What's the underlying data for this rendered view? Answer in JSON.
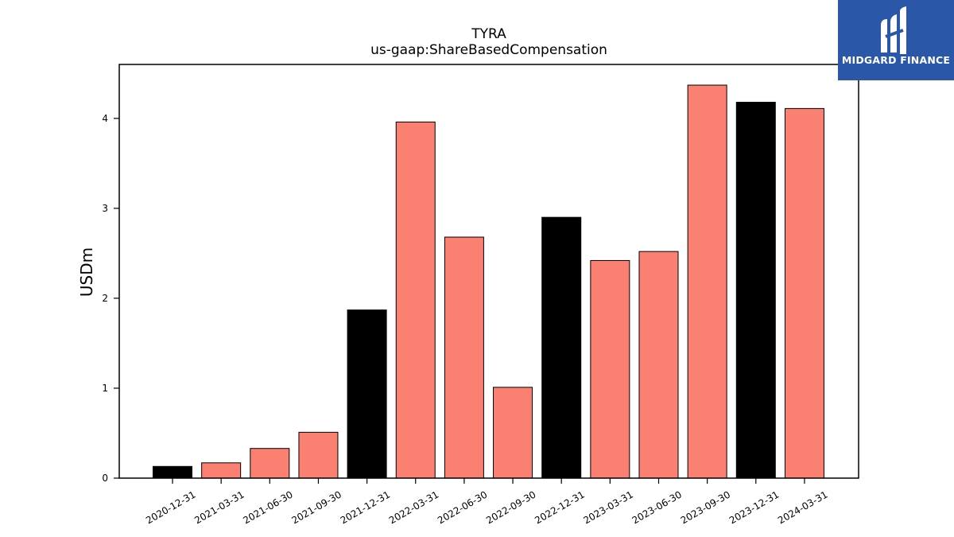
{
  "brand": {
    "name": "MIDGARD FINANCE",
    "bg_color": "#2b57a8"
  },
  "chart_data": {
    "type": "bar",
    "title": "TYRA",
    "subtitle": "us-gaap:ShareBasedCompensation",
    "xlabel": "",
    "ylabel": "USDm",
    "ylim": [
      0,
      4.6
    ],
    "yticks": [
      0,
      1,
      2,
      3,
      4
    ],
    "grid": false,
    "categories": [
      "2020-12-31",
      "2021-03-31",
      "2021-06-30",
      "2021-09-30",
      "2021-12-31",
      "2022-03-31",
      "2022-06-30",
      "2022-09-30",
      "2022-12-31",
      "2023-03-31",
      "2023-06-30",
      "2023-09-30",
      "2023-12-31",
      "2024-03-31"
    ],
    "values": [
      0.13,
      0.17,
      0.33,
      0.51,
      1.87,
      3.96,
      2.68,
      1.01,
      2.9,
      2.42,
      2.52,
      4.37,
      4.18,
      4.11
    ],
    "colors": [
      "#000000",
      "#fa8072",
      "#fa8072",
      "#fa8072",
      "#000000",
      "#fa8072",
      "#fa8072",
      "#fa8072",
      "#000000",
      "#fa8072",
      "#fa8072",
      "#fa8072",
      "#000000",
      "#fa8072"
    ]
  }
}
